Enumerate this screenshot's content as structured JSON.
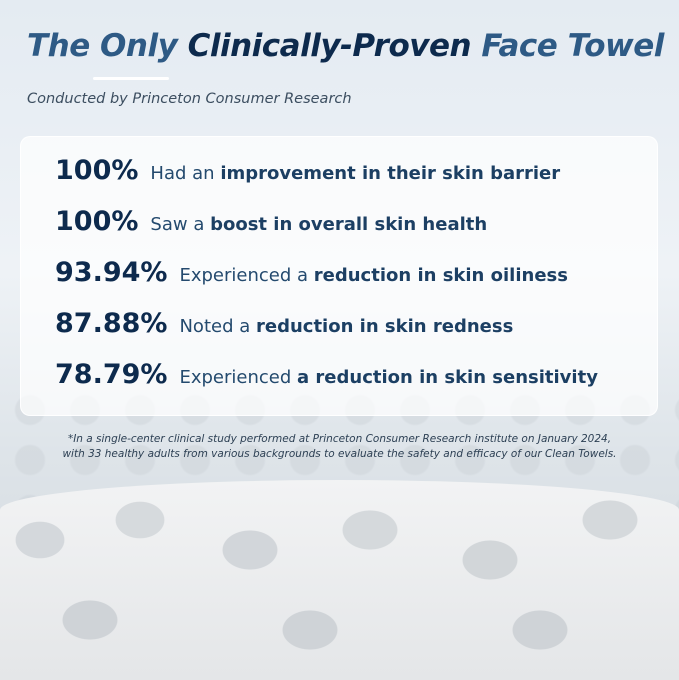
{
  "title": {
    "part1": "The Only",
    "part2": "Clinically-Proven",
    "part3": "Face Towel"
  },
  "subtitle": "Conducted by Princeton Consumer Research",
  "stats": [
    {
      "value": "100%",
      "pre": "Had an",
      "bold": "improvement in their skin barrier"
    },
    {
      "value": "100%",
      "pre": "Saw a",
      "bold": "boost in overall skin health"
    },
    {
      "value": "93.94%",
      "pre": "Experienced a",
      "bold": "reduction in skin oiliness"
    },
    {
      "value": "87.88%",
      "pre": "Noted a",
      "bold": "reduction in skin redness"
    },
    {
      "value": "78.79%",
      "pre": "Experienced",
      "bold": "a reduction in skin sensitivity"
    }
  ],
  "footnote": {
    "line1": "*In a single-center clinical study performed at Princeton Consumer Research institute on January 2024,",
    "line2": "with 33 healthy adults from various backgrounds to evaluate the safety and efficacy of our Clean Towels."
  }
}
